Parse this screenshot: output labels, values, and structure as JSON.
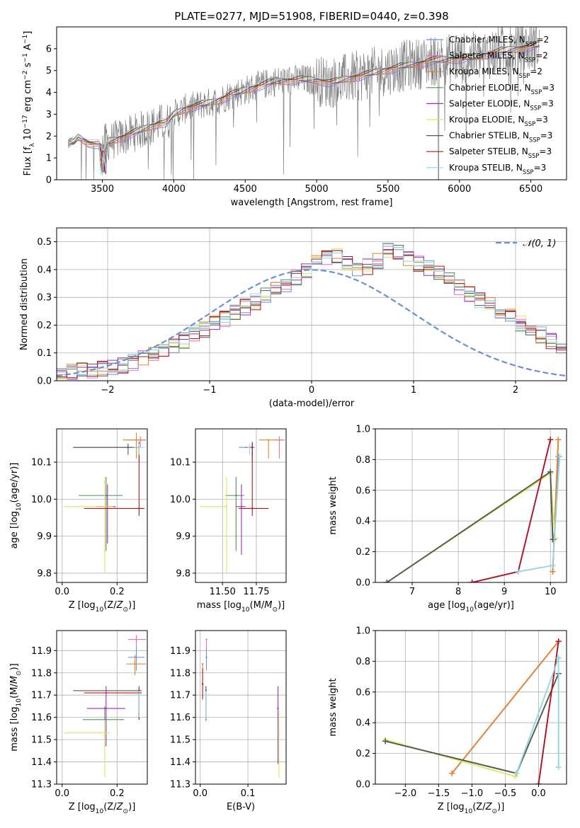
{
  "figure": {
    "title": "PLATE=0277, MJD=51908, FIBERID=0440, z=0.398"
  },
  "palette": {
    "Chabrier MILES": "#6b8fd6",
    "Salpeter MILES": "#e86fb8",
    "Kroupa MILES": "#e8852a",
    "Chabrier ELODIE": "#5a8a5a",
    "Salpeter ELODIE": "#9a2fc0",
    "Kroupa ELODIE": "#d4ec5a",
    "Chabrier STELIB": "#555555",
    "Salpeter STELIB": "#b01818",
    "Kroupa STELIB": "#8fd6e0",
    "data": "#7f7f7f",
    "normal_curve": "#6b8fd6",
    "grid": "#b0b0b0"
  },
  "chart_data": [
    {
      "id": "spectrum",
      "type": "line",
      "xlabel": "wavelength [Angstrom, rest frame]",
      "ylabel": "Flux [f_λ 10^-17 erg cm^-2 s^-1 A^-1]",
      "xlim": [
        3180,
        6750
      ],
      "ylim": [
        0,
        7
      ],
      "xticks": [
        3500,
        4000,
        4500,
        5000,
        5500,
        6000,
        6500
      ],
      "yticks": [
        0,
        1,
        2,
        3,
        4,
        5,
        6
      ],
      "grid": false,
      "legend": "top-right",
      "legend_entries": [
        "Chabrier MILES, N_SSP=2",
        "Salpeter MILES, N_SSP=2",
        "Kroupa MILES, N_SSP=2",
        "Chabrier ELODIE, N_SSP=3",
        "Salpeter ELODIE, N_SSP=3",
        "Kroupa ELODIE, N_SSP=3",
        "Chabrier STELIB, N_SSP=3",
        "Salpeter STELIB, N_SSP=3",
        "Kroupa STELIB, N_SSP=3"
      ],
      "model_continuum": {
        "x": [
          3260,
          3280,
          3300,
          3330,
          3400,
          3480,
          3520,
          3600,
          3700,
          3800,
          3900,
          3950,
          4000,
          4100,
          4200,
          4300,
          4400,
          4500,
          4600,
          4700,
          4800,
          4900,
          5000,
          5100,
          5200,
          5300,
          5400,
          5500,
          5600,
          5700,
          5800,
          5900,
          6000,
          6100,
          6200,
          6300,
          6400,
          6500,
          6560
        ],
        "y": [
          1.6,
          1.75,
          1.7,
          1.95,
          1.7,
          1.6,
          1.7,
          1.85,
          2.1,
          2.35,
          2.6,
          2.6,
          3.0,
          3.3,
          3.45,
          3.6,
          3.9,
          4.1,
          4.3,
          4.5,
          4.55,
          4.6,
          4.55,
          4.45,
          4.6,
          4.75,
          4.9,
          5.05,
          5.2,
          5.3,
          5.45,
          5.5,
          5.55,
          5.6,
          5.75,
          5.9,
          6.0,
          6.1,
          6.2
        ]
      }
    },
    {
      "id": "residuals",
      "type": "line",
      "xlabel": "(data-model)/error",
      "ylabel": "Normed distribution",
      "xlim": [
        -2.5,
        2.5
      ],
      "ylim": [
        0,
        0.55
      ],
      "xticks": [
        -2,
        -1,
        0,
        1,
        2
      ],
      "yticks": [
        0.0,
        0.1,
        0.2,
        0.3,
        0.4,
        0.5
      ],
      "grid": true,
      "legend": "top-right",
      "legend_entries": [
        "𝒩(0, 1)"
      ],
      "bin_width": 0.1,
      "bin_start": -2.5,
      "histogram_shape": [
        0.03,
        0.03,
        0.035,
        0.04,
        0.045,
        0.05,
        0.055,
        0.065,
        0.08,
        0.095,
        0.11,
        0.125,
        0.145,
        0.165,
        0.185,
        0.205,
        0.225,
        0.245,
        0.265,
        0.285,
        0.305,
        0.325,
        0.345,
        0.37,
        0.4,
        0.43,
        0.44,
        0.45,
        0.42,
        0.4,
        0.41,
        0.43,
        0.47,
        0.46,
        0.44,
        0.42,
        0.405,
        0.385,
        0.36,
        0.335,
        0.31,
        0.29,
        0.27,
        0.25,
        0.23,
        0.205,
        0.185,
        0.165,
        0.145,
        0.125,
        0.11,
        0.095,
        0.08,
        0.07,
        0.06,
        0.05,
        0.045,
        0.04,
        0.035,
        0.03
      ]
    },
    {
      "id": "age_vs_Z",
      "type": "scatter",
      "xlabel": "Z [log10(Z/Z⊙)]",
      "ylabel": "age  [log10(age/yr)]",
      "xlim": [
        -0.02,
        0.31
      ],
      "ylim": [
        9.775,
        10.19
      ],
      "xticks": [
        0.0,
        0.2
      ],
      "yticks": [
        9.8,
        9.9,
        10.0,
        10.1
      ],
      "grid": true,
      "points": [
        {
          "series": "Chabrier MILES",
          "x": 0.28,
          "y": 10.14,
          "xerr": [
            0.24,
            0.0
          ],
          "yerr": [
            0.04,
            0.01
          ]
        },
        {
          "series": "Salpeter MILES",
          "x": 0.285,
          "y": 10.16,
          "xerr": [
            0.05,
            0.02
          ],
          "yerr": [
            0.02,
            0.01
          ]
        },
        {
          "series": "Kroupa MILES",
          "x": 0.27,
          "y": 10.16,
          "xerr": [
            0.05,
            0.035
          ],
          "yerr": [
            0.05,
            0.02
          ]
        },
        {
          "series": "Chabrier ELODIE",
          "x": 0.16,
          "y": 10.01,
          "xerr": [
            0.1,
            0.06
          ],
          "yerr": [
            0.15,
            0.05
          ]
        },
        {
          "series": "Salpeter ELODIE",
          "x": 0.165,
          "y": 9.98,
          "xerr": [
            0.04,
            0.03
          ],
          "yerr": [
            0.1,
            0.06
          ]
        },
        {
          "series": "Kroupa ELODIE",
          "x": 0.155,
          "y": 9.98,
          "xerr": [
            0.15,
            0.03
          ],
          "yerr": [
            0.18,
            0.08
          ]
        },
        {
          "series": "Chabrier STELIB",
          "x": 0.24,
          "y": 10.14,
          "xerr": [
            0.2,
            0.04
          ],
          "yerr": [
            0.02,
            0.01
          ]
        },
        {
          "series": "Salpeter STELIB",
          "x": 0.28,
          "y": 9.975,
          "xerr": [
            0.2,
            0.02
          ],
          "yerr": [
            0.02,
            0.18
          ]
        },
        {
          "series": "Kroupa STELIB",
          "x": 0.28,
          "y": 10.14,
          "xerr": [
            0.02,
            0.02
          ],
          "yerr": [
            0.02,
            0.01
          ]
        }
      ]
    },
    {
      "id": "age_vs_mass",
      "type": "scatter",
      "xlabel": "mass [log10(M/M⊙)]",
      "ylabel": "",
      "xlim": [
        11.3,
        11.97
      ],
      "ylim": [
        9.775,
        10.19
      ],
      "xticks": [
        11.5,
        11.75
      ],
      "yticks": [
        9.8,
        9.9,
        10.0,
        10.1
      ],
      "grid": true,
      "points": [
        {
          "series": "Chabrier MILES",
          "x": 11.72,
          "y": 10.14,
          "xerr": [
            0.1,
            0.02
          ],
          "yerr": [
            0.04,
            0.01
          ]
        },
        {
          "series": "Salpeter MILES",
          "x": 11.92,
          "y": 10.16,
          "xerr": [
            0.04,
            0.02
          ],
          "yerr": [
            0.05,
            0.01
          ]
        },
        {
          "series": "Kroupa MILES",
          "x": 11.84,
          "y": 10.16,
          "xerr": [
            0.07,
            0.12
          ],
          "yerr": [
            0.05,
            0.0
          ]
        },
        {
          "series": "Chabrier ELODIE",
          "x": 11.6,
          "y": 10.01,
          "xerr": [
            0.08,
            0.06
          ],
          "yerr": [
            0.15,
            0.05
          ]
        },
        {
          "series": "Salpeter ELODIE",
          "x": 11.64,
          "y": 9.98,
          "xerr": [
            0.04,
            0.03
          ],
          "yerr": [
            0.13,
            0.06
          ]
        },
        {
          "series": "Kroupa ELODIE",
          "x": 11.53,
          "y": 9.98,
          "xerr": [
            0.2,
            0.0
          ],
          "yerr": [
            0.18,
            0.08
          ]
        },
        {
          "series": "Chabrier STELIB",
          "x": 11.72,
          "y": 10.14,
          "xerr": [
            0.05,
            0.0
          ],
          "yerr": [
            0.02,
            0.01
          ]
        },
        {
          "series": "Salpeter STELIB",
          "x": 11.72,
          "y": 9.975,
          "xerr": [
            0.1,
            0.12
          ],
          "yerr": [
            0.02,
            0.18
          ]
        },
        {
          "series": "Kroupa STELIB",
          "x": 11.7,
          "y": 10.14,
          "xerr": [
            0.02,
            0.0
          ],
          "yerr": [
            0.02,
            0.01
          ]
        }
      ]
    },
    {
      "id": "weight_vs_age",
      "type": "line",
      "xlabel": "age  [log10(age/yr)]",
      "ylabel": "mass weight",
      "xlim": [
        6.2,
        10.35
      ],
      "ylim": [
        0,
        1
      ],
      "xticks": [
        7,
        8,
        9,
        10
      ],
      "yticks": [
        0.0,
        0.2,
        0.4,
        0.6,
        0.8,
        1.0
      ],
      "grid": true,
      "series": [
        {
          "name": "Chabrier MILES",
          "x": [
            10.08,
            10.17
          ],
          "y": [
            0.28,
            0.82
          ]
        },
        {
          "name": "Salpeter MILES",
          "x": [
            10.05,
            10.17
          ],
          "y": [
            0.07,
            0.93
          ]
        },
        {
          "name": "Kroupa MILES",
          "x": [
            10.05,
            10.17
          ],
          "y": [
            0.07,
            0.93
          ]
        },
        {
          "name": "Chabrier ELODIE",
          "x": [
            6.45,
            10.0,
            10.05
          ],
          "y": [
            0.0,
            0.72,
            0.28
          ]
        },
        {
          "name": "Salpeter ELODIE",
          "x": [
            8.3,
            9.3,
            10.0
          ],
          "y": [
            0.0,
            0.07,
            0.93
          ]
        },
        {
          "name": "Kroupa ELODIE",
          "x": [
            6.45,
            10.0,
            10.1
          ],
          "y": [
            0.0,
            0.71,
            0.29
          ]
        },
        {
          "name": "Chabrier STELIB",
          "x": [
            6.45,
            10.0,
            10.05
          ],
          "y": [
            0.0,
            0.72,
            0.28
          ]
        },
        {
          "name": "Salpeter STELIB",
          "x": [
            8.3,
            9.3,
            10.0
          ],
          "y": [
            0.0,
            0.07,
            0.93
          ]
        },
        {
          "name": "Kroupa STELIB",
          "x": [
            9.3,
            10.05,
            10.2
          ],
          "y": [
            0.07,
            0.11,
            0.82
          ]
        }
      ]
    },
    {
      "id": "mass_vs_Z",
      "type": "scatter",
      "xlabel": "Z [log10(Z/Z⊙)]",
      "ylabel": "mass [log10(M/M⊙)]",
      "xlim": [
        -0.02,
        0.31
      ],
      "ylim": [
        11.3,
        11.99
      ],
      "xticks": [
        0.0,
        0.2
      ],
      "yticks": [
        11.3,
        11.4,
        11.5,
        11.6,
        11.7,
        11.8,
        11.9
      ],
      "grid": true,
      "points": [
        {
          "series": "Chabrier MILES",
          "x": 0.27,
          "y": 11.87,
          "xerr": [
            0.03,
            0.03
          ],
          "yerr": [
            0.06,
            0.05
          ]
        },
        {
          "series": "Salpeter MILES",
          "x": 0.27,
          "y": 11.95,
          "xerr": [
            0.03,
            0.035
          ],
          "yerr": [
            0.03,
            0.02
          ]
        },
        {
          "series": "Kroupa MILES",
          "x": 0.265,
          "y": 11.84,
          "xerr": [
            0.03,
            0.04
          ],
          "yerr": [
            0.05,
            0.04
          ]
        },
        {
          "series": "Chabrier ELODIE",
          "x": 0.155,
          "y": 11.59,
          "xerr": [
            0.08,
            0.07
          ],
          "yerr": [
            0.12,
            0.06
          ]
        },
        {
          "series": "Salpeter ELODIE",
          "x": 0.16,
          "y": 11.64,
          "xerr": [
            0.07,
            0.07
          ],
          "yerr": [
            0.17,
            0.1
          ]
        },
        {
          "series": "Kroupa ELODIE",
          "x": 0.155,
          "y": 11.53,
          "xerr": [
            0.15,
            0.02
          ],
          "yerr": [
            0.2,
            0.06
          ]
        },
        {
          "series": "Chabrier STELIB",
          "x": 0.28,
          "y": 11.72,
          "xerr": [
            0.24,
            0.01
          ],
          "yerr": [
            0.13,
            0.02
          ]
        },
        {
          "series": "Salpeter STELIB",
          "x": 0.28,
          "y": 11.71,
          "xerr": [
            0.2,
            0.01
          ],
          "yerr": [
            0.12,
            0.02
          ]
        },
        {
          "series": "Kroupa STELIB",
          "x": 0.28,
          "y": 11.7,
          "xerr": [
            0.04,
            0.01
          ],
          "yerr": [
            0.1,
            0.02
          ]
        }
      ]
    },
    {
      "id": "mass_vs_EBV",
      "type": "scatter",
      "xlabel": "E(B-V)",
      "ylabel": "",
      "xlim": [
        -0.01,
        0.18
      ],
      "ylim": [
        11.3,
        11.99
      ],
      "xticks": [
        0.0,
        0.1
      ],
      "yticks": [
        11.3,
        11.4,
        11.5,
        11.6,
        11.7,
        11.8,
        11.9
      ],
      "grid": true,
      "points": [
        {
          "series": "Chabrier MILES",
          "x": 0.013,
          "y": 11.87,
          "xerr": [
            0.0,
            0.0
          ],
          "yerr": [
            0.06,
            0.05
          ]
        },
        {
          "series": "Salpeter MILES",
          "x": 0.013,
          "y": 11.95,
          "xerr": [
            0.0,
            0.0
          ],
          "yerr": [
            0.04,
            0.0
          ]
        },
        {
          "series": "Kroupa MILES",
          "x": 0.005,
          "y": 11.84,
          "xerr": [
            0.0,
            0.0
          ],
          "yerr": [
            0.05,
            0.0
          ]
        },
        {
          "series": "Chabrier ELODIE",
          "x": 0.012,
          "y": 11.59,
          "xerr": [
            0.0,
            0.0
          ],
          "yerr": [
            0.0,
            0.0
          ]
        },
        {
          "series": "Salpeter ELODIE",
          "x": 0.163,
          "y": 11.64,
          "xerr": [
            0.0,
            0.0
          ],
          "yerr": [
            0.25,
            0.1
          ]
        },
        {
          "series": "Kroupa ELODIE",
          "x": 0.165,
          "y": 11.53,
          "xerr": [
            0.0,
            0.0
          ],
          "yerr": [
            0.2,
            0.1
          ]
        },
        {
          "series": "Chabrier STELIB",
          "x": 0.012,
          "y": 11.72,
          "xerr": [
            0.0,
            0.0
          ],
          "yerr": [
            0.13,
            0.02
          ]
        },
        {
          "series": "Salpeter STELIB",
          "x": 0.005,
          "y": 11.75,
          "xerr": [
            0.0,
            0.0
          ],
          "yerr": [
            0.07,
            0.07
          ]
        },
        {
          "series": "Kroupa STELIB",
          "x": 0.012,
          "y": 11.7,
          "xerr": [
            0.0,
            0.0
          ],
          "yerr": [
            0.12,
            0.02
          ]
        }
      ]
    },
    {
      "id": "weight_vs_Z",
      "type": "line",
      "xlabel": "Z [log10(Z/Z⊙)]",
      "ylabel": "mass weight",
      "xlim": [
        -2.45,
        0.42
      ],
      "ylim": [
        0,
        1
      ],
      "xticks": [
        -2.0,
        -1.5,
        -1.0,
        -0.5,
        0.0
      ],
      "yticks": [
        0.0,
        0.2,
        0.4,
        0.6,
        0.8,
        1.0
      ],
      "grid": true,
      "series": [
        {
          "name": "Chabrier MILES",
          "x": [
            -1.3,
            0.3
          ],
          "y": [
            0.07,
            0.93
          ]
        },
        {
          "name": "Salpeter MILES",
          "x": [
            -1.3,
            0.3
          ],
          "y": [
            0.07,
            0.93
          ]
        },
        {
          "name": "Kroupa MILES",
          "x": [
            -1.3,
            0.3
          ],
          "y": [
            0.07,
            0.93
          ]
        },
        {
          "name": "Chabrier ELODIE",
          "x": [
            -2.3,
            -0.33,
            0.3
          ],
          "y": [
            0.28,
            0.07,
            0.72
          ]
        },
        {
          "name": "Salpeter ELODIE",
          "x": [
            0.0,
            0.3
          ],
          "y": [
            0.0,
            0.93
          ]
        },
        {
          "name": "Kroupa ELODIE",
          "x": [
            -2.3,
            -0.35,
            0.3
          ],
          "y": [
            0.29,
            0.05,
            0.72
          ]
        },
        {
          "name": "Chabrier STELIB",
          "x": [
            -2.3,
            -0.33,
            0.3
          ],
          "y": [
            0.28,
            0.07,
            0.72
          ]
        },
        {
          "name": "Salpeter STELIB",
          "x": [
            0.0,
            0.3
          ],
          "y": [
            0.0,
            0.93
          ]
        },
        {
          "name": "Kroupa STELIB",
          "x": [
            -0.33,
            0.3,
            0.3
          ],
          "y": [
            0.07,
            0.82,
            0.11
          ]
        }
      ]
    }
  ]
}
